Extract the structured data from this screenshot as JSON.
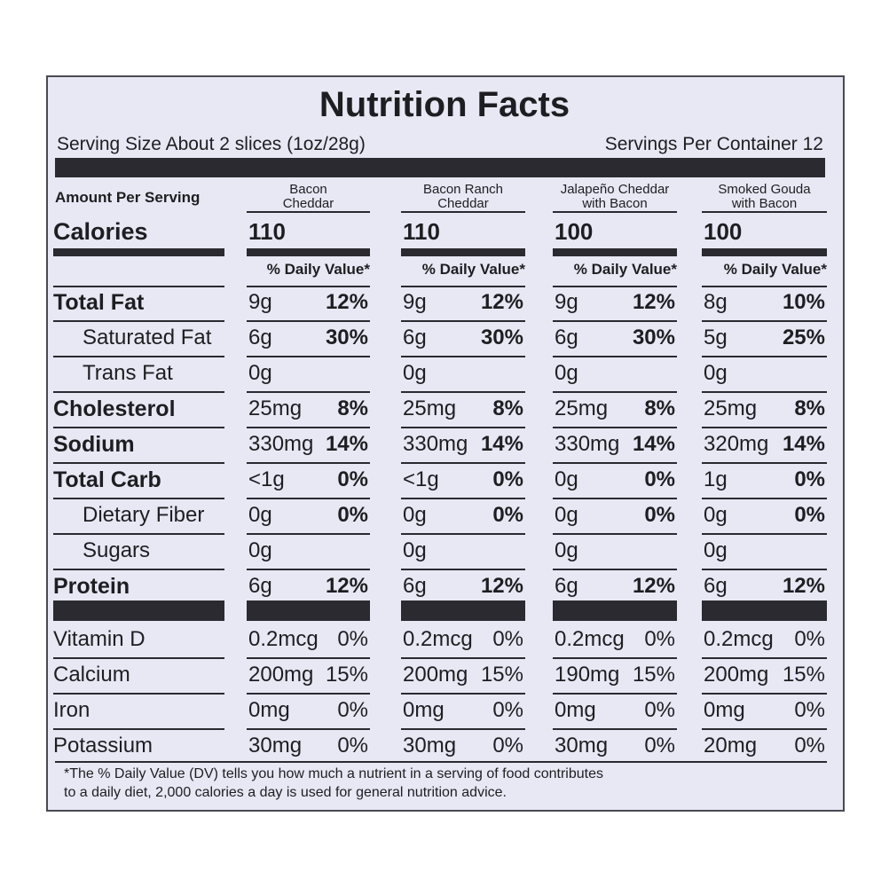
{
  "title": "Nutrition Facts",
  "serving_size": "Serving Size  About 2 slices (1oz/28g)",
  "servings_per_container": "Servings Per Container 12",
  "amount_per_serving": "Amount Per Serving",
  "calories_label": "Calories",
  "columns": [
    {
      "name": [
        "Bacon",
        "Cheddar"
      ],
      "calories": "110",
      "dv_header": "% Daily Value*"
    },
    {
      "name": [
        "Bacon Ranch",
        "Cheddar"
      ],
      "calories": "110",
      "dv_header": "% Daily Value*"
    },
    {
      "name": [
        "Jalapeño Cheddar",
        "with Bacon"
      ],
      "calories": "100",
      "dv_header": "% Daily Value*"
    },
    {
      "name": [
        "Smoked Gouda",
        "with Bacon"
      ],
      "calories": "100",
      "dv_header": "% Daily Value*"
    }
  ],
  "rows": [
    {
      "label": "Total Fat",
      "style": "bold",
      "cells": [
        {
          "amount": "9g",
          "pct": "12%"
        },
        {
          "amount": "9g",
          "pct": "12%"
        },
        {
          "amount": "9g",
          "pct": "12%"
        },
        {
          "amount": "8g",
          "pct": "10%"
        }
      ]
    },
    {
      "label": "Saturated Fat",
      "style": "indent",
      "cells": [
        {
          "amount": "6g",
          "pct": "30%"
        },
        {
          "amount": "6g",
          "pct": "30%"
        },
        {
          "amount": "6g",
          "pct": "30%"
        },
        {
          "amount": "5g",
          "pct": "25%"
        }
      ]
    },
    {
      "label": "Trans Fat",
      "style": "indent",
      "cells": [
        {
          "amount": "0g"
        },
        {
          "amount": "0g"
        },
        {
          "amount": "0g"
        },
        {
          "amount": "0g"
        }
      ]
    },
    {
      "label": "Cholesterol",
      "style": "bold",
      "cells": [
        {
          "amount": "25mg",
          "pct": "8%"
        },
        {
          "amount": "25mg",
          "pct": "8%"
        },
        {
          "amount": "25mg",
          "pct": "8%"
        },
        {
          "amount": "25mg",
          "pct": "8%"
        }
      ]
    },
    {
      "label": "Sodium",
      "style": "bold",
      "cells": [
        {
          "amount": "330mg",
          "pct": "14%"
        },
        {
          "amount": "330mg",
          "pct": "14%"
        },
        {
          "amount": "330mg",
          "pct": "14%"
        },
        {
          "amount": "320mg",
          "pct": "14%"
        }
      ]
    },
    {
      "label": "Total Carb",
      "style": "bold",
      "cells": [
        {
          "amount": "<1g",
          "pct": "0%"
        },
        {
          "amount": "<1g",
          "pct": "0%"
        },
        {
          "amount": "0g",
          "pct": "0%"
        },
        {
          "amount": "1g",
          "pct": "0%"
        }
      ]
    },
    {
      "label": "Dietary Fiber",
      "style": "indent",
      "cells": [
        {
          "amount": "0g",
          "pct": "0%"
        },
        {
          "amount": "0g",
          "pct": "0%"
        },
        {
          "amount": "0g",
          "pct": "0%"
        },
        {
          "amount": "0g",
          "pct": "0%"
        }
      ]
    },
    {
      "label": "Sugars",
      "style": "indent",
      "cells": [
        {
          "amount": "0g"
        },
        {
          "amount": "0g"
        },
        {
          "amount": "0g"
        },
        {
          "amount": "0g"
        }
      ]
    },
    {
      "label": "Protein",
      "style": "bold",
      "cells": [
        {
          "amount": "6g",
          "pct": "12%"
        },
        {
          "amount": "6g",
          "pct": "12%"
        },
        {
          "amount": "6g",
          "pct": "12%"
        },
        {
          "amount": "6g",
          "pct": "12%"
        }
      ]
    }
  ],
  "vitamins": [
    {
      "label": "Vitamin D",
      "cells": [
        {
          "amount": "0.2mcg",
          "pct": "0%"
        },
        {
          "amount": "0.2mcg",
          "pct": "0%"
        },
        {
          "amount": "0.2mcg",
          "pct": "0%"
        },
        {
          "amount": "0.2mcg",
          "pct": "0%"
        }
      ]
    },
    {
      "label": "Calcium",
      "cells": [
        {
          "amount": "200mg",
          "pct": "15%"
        },
        {
          "amount": "200mg",
          "pct": "15%"
        },
        {
          "amount": "190mg",
          "pct": "15%"
        },
        {
          "amount": "200mg",
          "pct": "15%"
        }
      ]
    },
    {
      "label": "Iron",
      "cells": [
        {
          "amount": "0mg",
          "pct": "0%"
        },
        {
          "amount": "0mg",
          "pct": "0%"
        },
        {
          "amount": "0mg",
          "pct": "0%"
        },
        {
          "amount": "0mg",
          "pct": "0%"
        }
      ]
    },
    {
      "label": "Potassium",
      "cells": [
        {
          "amount": "30mg",
          "pct": "0%"
        },
        {
          "amount": "30mg",
          "pct": "0%"
        },
        {
          "amount": "30mg",
          "pct": "0%"
        },
        {
          "amount": "20mg",
          "pct": "0%"
        }
      ]
    }
  ],
  "footnote": [
    "*The % Daily Value (DV) tells you how much a nutrient in a serving of food contributes",
    "to a daily diet, 2,000 calories a day is used for general nutrition advice."
  ]
}
